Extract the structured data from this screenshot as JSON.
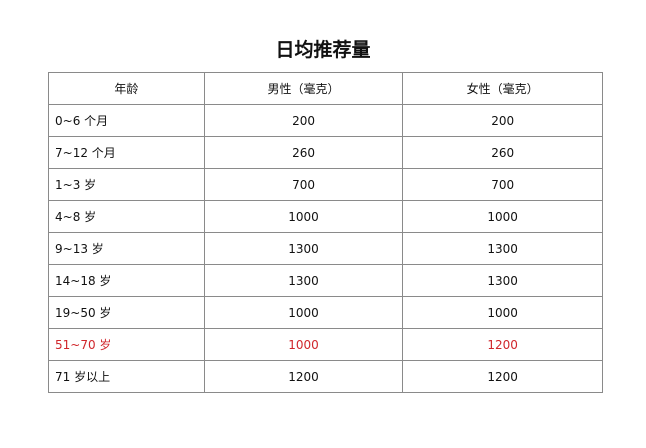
{
  "title": "日均推荐量",
  "headers": [
    "年龄",
    "男性（毫克）",
    "女性（毫克）"
  ],
  "highlight_color": "#d0262b",
  "rows": [
    {
      "age": "0~6 个月",
      "male": "200",
      "female": "200",
      "highlight": false
    },
    {
      "age": "7~12 个月",
      "male": "260",
      "female": "260",
      "highlight": false
    },
    {
      "age": "1~3 岁",
      "male": "700",
      "female": "700",
      "highlight": false
    },
    {
      "age": "4~8 岁",
      "male": "1000",
      "female": "1000",
      "highlight": false
    },
    {
      "age": "9~13 岁",
      "male": "1300",
      "female": "1300",
      "highlight": false
    },
    {
      "age": "14~18 岁",
      "male": "1300",
      "female": "1300",
      "highlight": false
    },
    {
      "age": "19~50 岁",
      "male": "1000",
      "female": "1000",
      "highlight": false
    },
    {
      "age": "51~70 岁",
      "male": "1000",
      "female": "1200",
      "highlight": true
    },
    {
      "age": "71 岁以上",
      "male": "1200",
      "female": "1200",
      "highlight": false
    }
  ]
}
